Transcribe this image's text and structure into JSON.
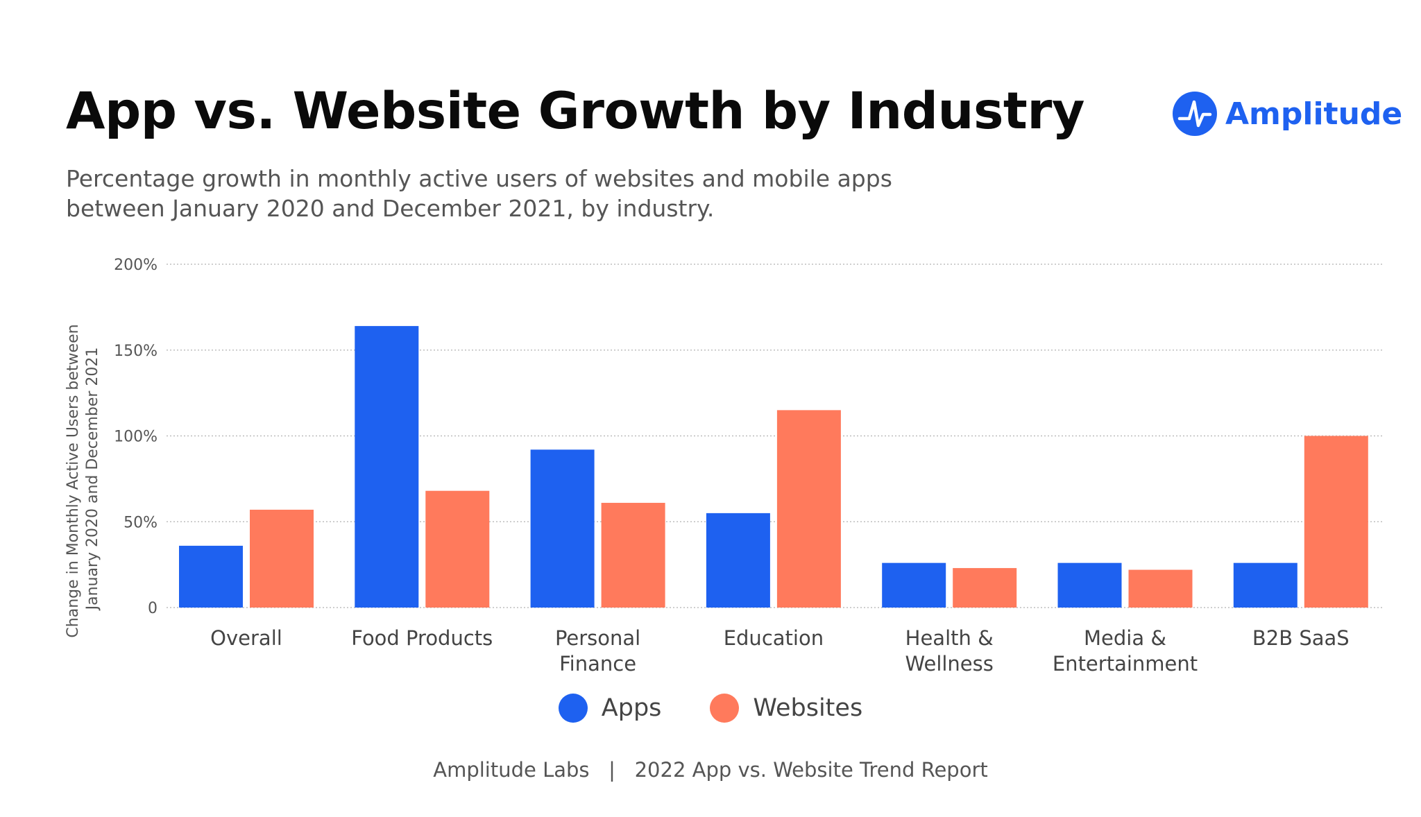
{
  "header": {
    "title": "App vs. Website Growth by Industry",
    "subtitle_lines": [
      "Percentage growth in monthly active users of websites and mobile apps",
      "between January 2020 and December 2021, by industry."
    ]
  },
  "logo": {
    "text": "Amplitude",
    "icon": "amplitude-logo-icon",
    "color": "#1e61f0"
  },
  "chart_data": {
    "type": "bar",
    "title": "App vs. Website Growth by Industry",
    "ylabel_lines": [
      "Change in Monthly Active Users between",
      "January 2020 and December 2021"
    ],
    "xlabel": "",
    "ylim": [
      0,
      200
    ],
    "yticks": [
      0,
      50,
      100,
      150,
      200
    ],
    "ytick_labels": [
      "0",
      "50%",
      "100%",
      "150%",
      "200%"
    ],
    "grid": true,
    "legend_position": "bottom",
    "categories": [
      [
        "Overall"
      ],
      [
        "Food Products"
      ],
      [
        "Personal",
        "Finance"
      ],
      [
        "Education"
      ],
      [
        "Health &",
        "Wellness"
      ],
      [
        "Media &",
        "Entertainment"
      ],
      [
        "B2B SaaS"
      ]
    ],
    "series": [
      {
        "name": "Apps",
        "color": "#1e61f0",
        "values": [
          36,
          164,
          92,
          55,
          26,
          26,
          26
        ]
      },
      {
        "name": "Websites",
        "color": "#ff7a5c",
        "values": [
          57,
          68,
          61,
          115,
          23,
          22,
          100
        ]
      }
    ]
  },
  "footer": {
    "text": "Amplitude Labs   |   2022 App vs. Website Trend Report"
  }
}
